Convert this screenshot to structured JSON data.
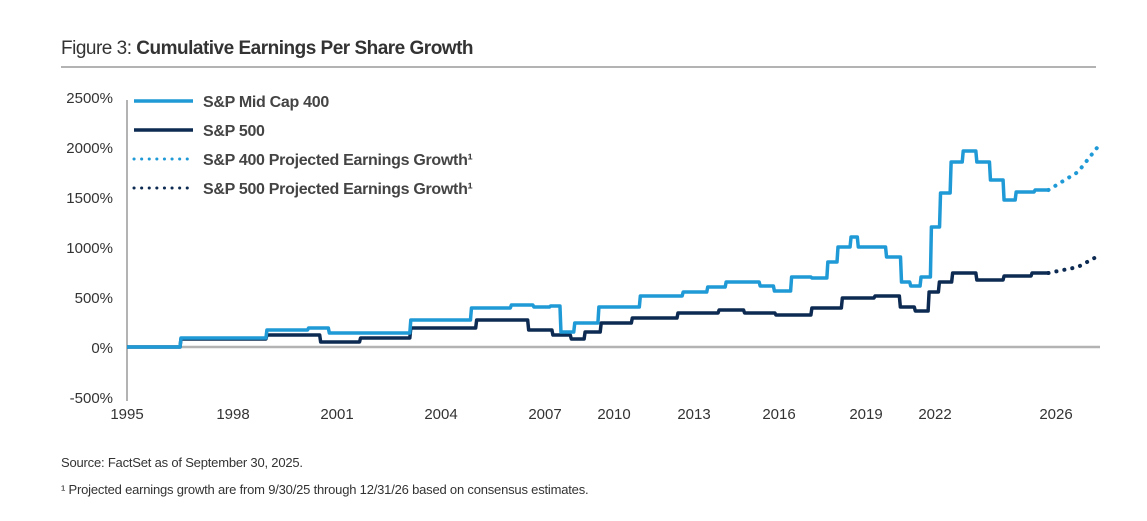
{
  "header": {
    "prefix": "Figure 3:",
    "title": "Cumulative Earnings Per Share Growth"
  },
  "chart_data": {
    "type": "line",
    "title": "Cumulative Earnings Per Share Growth",
    "ylim": [
      -500,
      2500
    ],
    "yticks": [
      "2500%",
      "2000%",
      "1500%",
      "1000%",
      "500%",
      "0%",
      "-500%"
    ],
    "ytick_values": [
      2500,
      2000,
      1500,
      1000,
      500,
      0,
      -500
    ],
    "xticks": [
      "1995",
      "1998",
      "2001",
      "2004",
      "2007",
      "2010",
      "2013",
      "2016",
      "2019",
      "2022",
      "2026"
    ],
    "grid": false,
    "legend_position": "top-left",
    "colors": {
      "midcap": "#1f9ad6",
      "sp500": "#0d2b52"
    },
    "series": [
      {
        "name": "S&P Mid Cap 400",
        "style": "solid",
        "color": "#1f9ad6",
        "x": [
          1995.0,
          1998.0,
          1999.9,
          2000.4,
          2001.1,
          2002.2,
          2004.0,
          2005.7,
          2006.3,
          2007.0,
          2007.4,
          2007.9,
          2008.6,
          2010.0,
          2011.9,
          2013.2,
          2013.7,
          2014.5,
          2015.2,
          2015.4,
          2016.2,
          2016.6,
          2017.6,
          2017.7,
          2018.3,
          2018.6,
          2018.8,
          2019.4,
          2020.3,
          2020.7,
          2021.1,
          2021.6,
          2022.0,
          2022.3,
          2022.7,
          2023.1,
          2023.6,
          2024.0,
          2024.5,
          2024.8,
          2025.75
        ],
        "y": [
          0,
          90,
          170,
          190,
          140,
          140,
          270,
          390,
          420,
          400,
          410,
          150,
          240,
          400,
          510,
          550,
          600,
          650,
          650,
          610,
          560,
          700,
          690,
          850,
          1000,
          1100,
          1000,
          1000,
          900,
          650,
          610,
          700,
          1200,
          1540,
          1850,
          1960,
          1850,
          1670,
          1470,
          1550,
          1570
        ]
      },
      {
        "name": "S&P 500",
        "style": "solid",
        "color": "#0d2b52",
        "x": [
          1995.0,
          1998.0,
          1999.9,
          2001.1,
          2002.2,
          2004.0,
          2006.0,
          2007.0,
          2007.6,
          2008.6,
          2008.8,
          2010.0,
          2011.3,
          2013.4,
          2014.3,
          2015.2,
          2016.5,
          2017.7,
          2018.6,
          2020.2,
          2020.7,
          2021.5,
          2021.9,
          2022.3,
          2022.8,
          2023.9,
          2024.6,
          2025.75
        ],
        "y": [
          0,
          80,
          120,
          50,
          90,
          190,
          270,
          170,
          120,
          80,
          150,
          240,
          290,
          340,
          370,
          340,
          320,
          390,
          490,
          510,
          400,
          360,
          550,
          650,
          740,
          670,
          710,
          740
        ]
      },
      {
        "name": "S&P 400 Projected Earnings Growth¹",
        "style": "dotted",
        "color": "#1f9ad6",
        "x": [
          2025.75,
          2026.5,
          2027.0
        ],
        "y": [
          1570,
          1750,
          2030
        ]
      },
      {
        "name": "S&P 500 Projected Earnings Growth¹",
        "style": "dotted",
        "color": "#0d2b52",
        "x": [
          2025.75,
          2026.5,
          2027.0
        ],
        "y": [
          740,
          800,
          920
        ]
      }
    ]
  },
  "footer": {
    "source": "Source: FactSet as of September 30, 2025.",
    "footnote": "¹ Projected earnings growth are from 9/30/25 through 12/31/26 based on consensus estimates."
  }
}
